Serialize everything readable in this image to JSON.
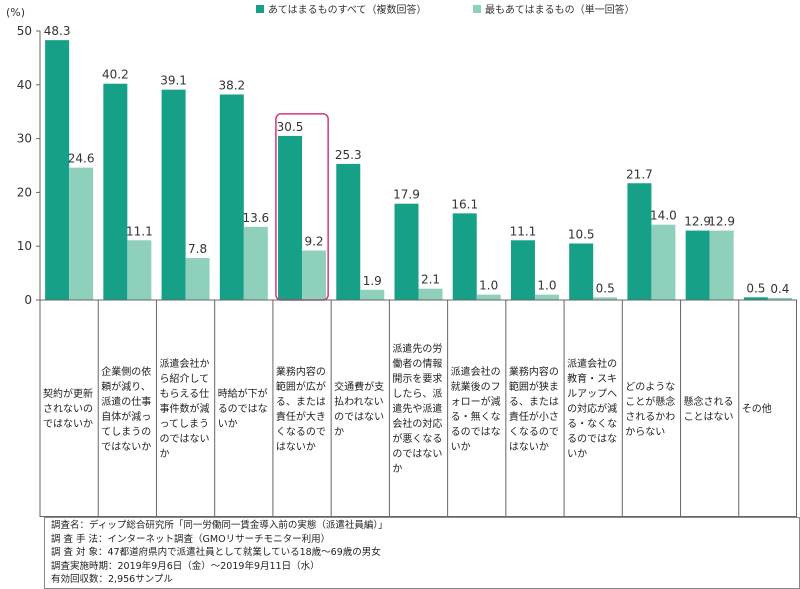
{
  "chart_data": {
    "type": "bar",
    "unit_label": "(%)",
    "ylim": [
      0,
      50
    ],
    "yticks": [
      "0",
      "10",
      "20",
      "30",
      "40",
      "50"
    ],
    "grid": false,
    "legend_position": "top",
    "categories": [
      "契約が更新されないのではないか",
      "企業側の依頼が減り、派遣の仕事自体が減ってしまうのではないか",
      "派遣会社から紹介してもらえる仕事件数が減ってしまうのではないか",
      "時給が下がるのではないか",
      "業務内容の範囲が広がる、または責任が大きくなるのではないか",
      "交通費が支払われないのではないか",
      "派遣先の労働者の情報開示を要求したら、派遣先や派遣会社の対応が悪くなるのではないか",
      "派遣会社の就業後のフォローが減る・無くなるのではないか",
      "業務内容の範囲が狭まる、または責任が小さくなるのではないか",
      "派遣会社の教育・スキルアップへの対応が減る・なくなるのではないか",
      "どのようなことが懸念されるかわからない",
      "懸念されることはない",
      "その他"
    ],
    "series": [
      {
        "name": "あてはまるものすべて（複数回答）",
        "color": "#17a088",
        "values": [
          48.3,
          40.2,
          39.1,
          38.2,
          30.5,
          25.3,
          17.9,
          16.1,
          11.1,
          10.5,
          21.7,
          12.9,
          0.5
        ]
      },
      {
        "name": "最もあてはまるもの（単一回答）",
        "color": "#8fd0bd",
        "values": [
          24.6,
          11.1,
          7.8,
          13.6,
          9.2,
          1.9,
          2.1,
          1.0,
          1.0,
          0.5,
          14.0,
          12.9,
          0.4
        ]
      }
    ],
    "value_labels": [
      [
        "48.3",
        "40.2",
        "39.1",
        "38.2",
        "30.5",
        "25.3",
        "17.9",
        "16.1",
        "11.1",
        "10.5",
        "21.7",
        "12.9",
        "0.5"
      ],
      [
        "24.6",
        "11.1",
        "7.8",
        "13.6",
        "9.2",
        "1.9",
        "2.1",
        "1.0",
        "1.0",
        "0.5",
        "14.0",
        "12.9",
        "0.4"
      ]
    ],
    "highlight_category_index": 4,
    "highlight_color": "#d6357f"
  },
  "notes": [
    "調査名：ディップ総合研究所「同一労働同一賃金導入前の実態（派遣社員編）」",
    "調 査 手 法：インターネット調査（GMOリサーチモニター利用）",
    "調 査 対 象：47都道府県内で派遣社員として就業している18歳～69歳の男女",
    "調査実施時期：2019年9月6日（金）～2019年9月11日（水）",
    "有効回収数：2,956サンプル"
  ]
}
